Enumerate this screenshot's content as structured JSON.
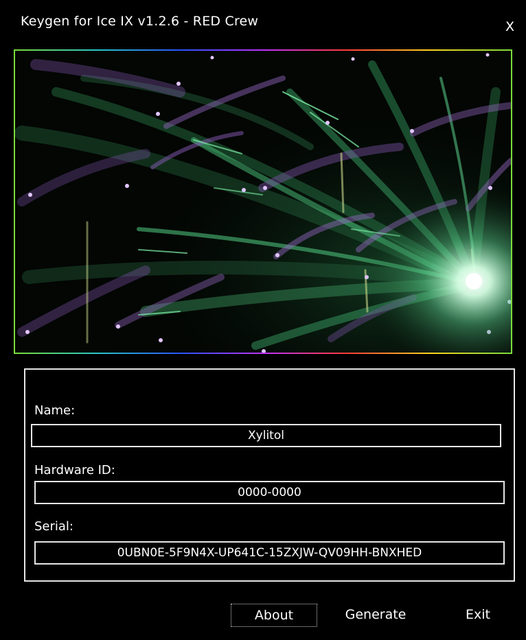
{
  "window": {
    "title": "Keygen for Ice IX v1.2.6 - RED Crew",
    "close_label": "X"
  },
  "banner": {
    "description_icon": "fireworks-animation",
    "accent_colors": [
      "#3ec87a",
      "#b98be6",
      "#d6ffe4"
    ]
  },
  "form": {
    "name_label": "Name:",
    "name_value": "Xylitol",
    "hwid_label": "Hardware ID:",
    "hwid_value": "0000-0000",
    "serial_label": "Serial:",
    "serial_value": "0UBN0E-5F9N4X-UP641C-15ZXJW-QV09HH-BNXHED"
  },
  "buttons": {
    "about_label": "About",
    "generate_label": "Generate",
    "exit_label": "Exit"
  }
}
